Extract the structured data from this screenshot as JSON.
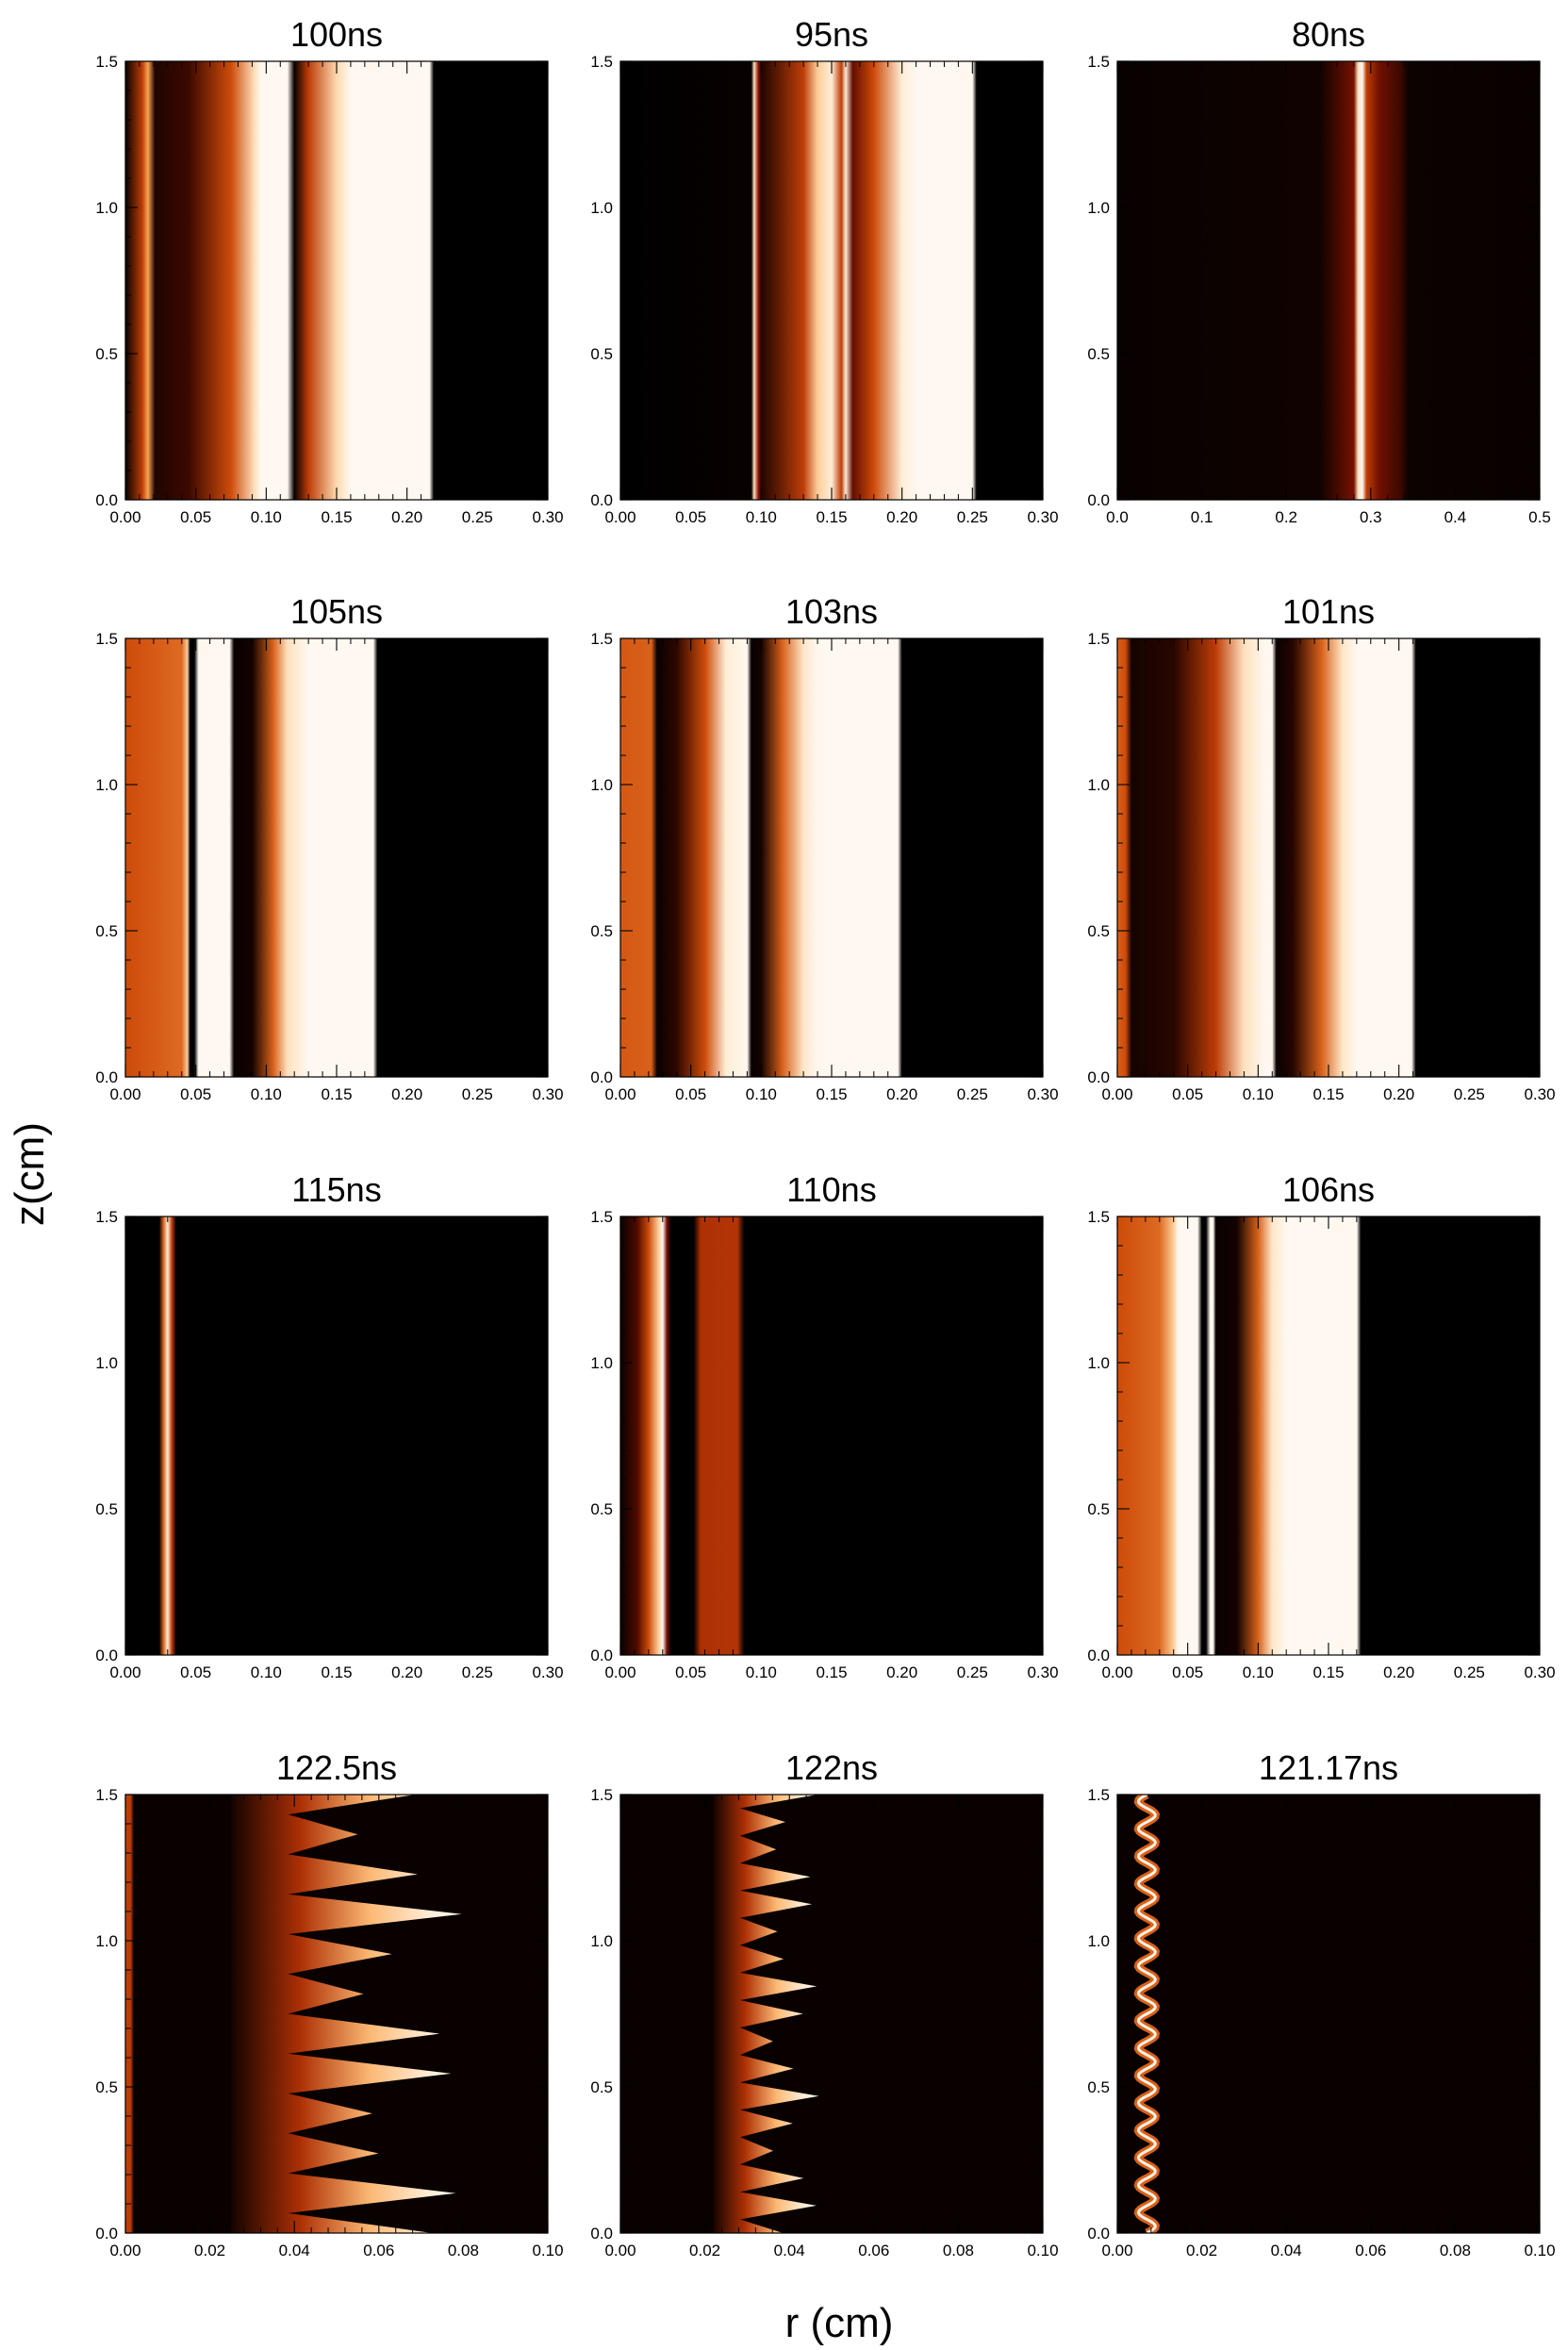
{
  "figure": {
    "ylabel": "z(cm)",
    "xlabel": "r (cm)"
  },
  "chart_data": [
    {
      "type": "heatmap",
      "title": "100ns",
      "xlim": [
        0,
        0.3
      ],
      "ylim": [
        0,
        1.5
      ],
      "xticks": [
        "0.00",
        "0.05",
        "0.10",
        "0.15",
        "0.20",
        "0.25",
        "0.30"
      ],
      "yticks": [
        "0.0",
        "0.5",
        "1.0",
        "1.5"
      ],
      "colormap": "black-red-orange-white",
      "profile": [
        [
          0,
          0.02
        ],
        [
          0.012,
          0.5
        ],
        [
          0.016,
          0.75
        ],
        [
          0.021,
          0.08
        ],
        [
          0.045,
          0.15
        ],
        [
          0.075,
          0.55
        ],
        [
          0.092,
          0.9
        ],
        [
          0.096,
          1
        ],
        [
          0.115,
          1
        ],
        [
          0.12,
          0.02
        ],
        [
          0.13,
          0.5
        ],
        [
          0.15,
          0.88
        ],
        [
          0.16,
          1
        ],
        [
          0.216,
          1
        ],
        [
          0.219,
          0
        ],
        [
          0.3,
          0
        ]
      ]
    },
    {
      "type": "heatmap",
      "title": "95ns",
      "xlim": [
        0,
        0.3
      ],
      "ylim": [
        0,
        1.5
      ],
      "xticks": [
        "0.00",
        "0.05",
        "0.10",
        "0.15",
        "0.20",
        "0.25",
        "0.30"
      ],
      "yticks": [
        "0.0",
        "0.5",
        "1.0",
        "1.5"
      ],
      "colormap": "black-red-orange-white",
      "profile": [
        [
          0,
          0
        ],
        [
          0.093,
          0.02
        ],
        [
          0.095,
          0.9
        ],
        [
          0.098,
          0.35
        ],
        [
          0.1,
          0.08
        ],
        [
          0.13,
          0.5
        ],
        [
          0.14,
          0.85
        ],
        [
          0.15,
          0.95
        ],
        [
          0.157,
          0.5
        ],
        [
          0.16,
          0.95
        ],
        [
          0.165,
          0.25
        ],
        [
          0.18,
          0.55
        ],
        [
          0.2,
          0.95
        ],
        [
          0.21,
          1
        ],
        [
          0.25,
          1
        ],
        [
          0.253,
          0
        ],
        [
          0.3,
          0
        ]
      ]
    },
    {
      "type": "heatmap",
      "title": "80ns",
      "xlim": [
        0,
        0.5
      ],
      "ylim": [
        0,
        1.5
      ],
      "xticks": [
        "0.0",
        "0.1",
        "0.2",
        "0.3",
        "0.4",
        "0.5"
      ],
      "yticks": [
        "0.0",
        "0.5",
        "1.0",
        "1.5"
      ],
      "colormap": "black-red-orange-white",
      "profile": [
        [
          0,
          0.02
        ],
        [
          0.24,
          0.04
        ],
        [
          0.28,
          0.3
        ],
        [
          0.285,
          0.9
        ],
        [
          0.29,
          1
        ],
        [
          0.295,
          0.5
        ],
        [
          0.31,
          0.28
        ],
        [
          0.335,
          0.15
        ],
        [
          0.345,
          0.03
        ],
        [
          0.5,
          0.02
        ]
      ]
    },
    {
      "type": "heatmap",
      "title": "105ns",
      "xlim": [
        0,
        0.3
      ],
      "ylim": [
        0,
        1.5
      ],
      "xticks": [
        "0.00",
        "0.05",
        "0.10",
        "0.15",
        "0.20",
        "0.25",
        "0.30"
      ],
      "yticks": [
        "0.0",
        "0.5",
        "1.0",
        "1.5"
      ],
      "colormap": "black-red-orange-white",
      "profile": [
        [
          0,
          0.55
        ],
        [
          0.04,
          0.62
        ],
        [
          0.044,
          0.85
        ],
        [
          0.046,
          0
        ],
        [
          0.049,
          0
        ],
        [
          0.052,
          1
        ],
        [
          0.074,
          1
        ],
        [
          0.077,
          0.02
        ],
        [
          0.09,
          0.05
        ],
        [
          0.105,
          0.6
        ],
        [
          0.115,
          0.9
        ],
        [
          0.13,
          1
        ],
        [
          0.176,
          1
        ],
        [
          0.179,
          0
        ],
        [
          0.3,
          0
        ]
      ]
    },
    {
      "type": "heatmap",
      "title": "103ns",
      "xlim": [
        0,
        0.3
      ],
      "ylim": [
        0,
        1.5
      ],
      "xticks": [
        "0.00",
        "0.05",
        "0.10",
        "0.15",
        "0.20",
        "0.25",
        "0.30"
      ],
      "yticks": [
        "0.0",
        "0.5",
        "1.0",
        "1.5"
      ],
      "colormap": "black-red-orange-white",
      "profile": [
        [
          0,
          0.58
        ],
        [
          0.022,
          0.6
        ],
        [
          0.026,
          0.02
        ],
        [
          0.04,
          0.12
        ],
        [
          0.06,
          0.55
        ],
        [
          0.075,
          0.95
        ],
        [
          0.09,
          1
        ],
        [
          0.093,
          0.02
        ],
        [
          0.1,
          0.05
        ],
        [
          0.115,
          0.6
        ],
        [
          0.13,
          0.92
        ],
        [
          0.14,
          1
        ],
        [
          0.197,
          1
        ],
        [
          0.2,
          0
        ],
        [
          0.3,
          0
        ]
      ]
    },
    {
      "type": "heatmap",
      "title": "101ns",
      "xlim": [
        0,
        0.3
      ],
      "ylim": [
        0,
        1.5
      ],
      "xticks": [
        "0.00",
        "0.05",
        "0.10",
        "0.15",
        "0.20",
        "0.25",
        "0.30"
      ],
      "yticks": [
        "0.0",
        "0.5",
        "1.0",
        "1.5"
      ],
      "colormap": "black-red-orange-white",
      "profile": [
        [
          0,
          0.6
        ],
        [
          0.006,
          0.55
        ],
        [
          0.01,
          0.05
        ],
        [
          0.04,
          0.1
        ],
        [
          0.07,
          0.5
        ],
        [
          0.09,
          0.9
        ],
        [
          0.105,
          1
        ],
        [
          0.11,
          1
        ],
        [
          0.113,
          0.02
        ],
        [
          0.125,
          0.1
        ],
        [
          0.145,
          0.6
        ],
        [
          0.16,
          0.92
        ],
        [
          0.17,
          1
        ],
        [
          0.209,
          1
        ],
        [
          0.212,
          0
        ],
        [
          0.3,
          0
        ]
      ]
    },
    {
      "type": "heatmap",
      "title": "115ns",
      "xlim": [
        0,
        0.3
      ],
      "ylim": [
        0,
        1.5
      ],
      "xticks": [
        "0.00",
        "0.05",
        "0.10",
        "0.15",
        "0.20",
        "0.25",
        "0.30"
      ],
      "yticks": [
        "0.0",
        "0.5",
        "1.0",
        "1.5"
      ],
      "colormap": "black-red-orange-white",
      "profile": [
        [
          0,
          0
        ],
        [
          0.024,
          0
        ],
        [
          0.027,
          0.6
        ],
        [
          0.03,
          0.95
        ],
        [
          0.033,
          0.5
        ],
        [
          0.036,
          0
        ],
        [
          0.3,
          0
        ]
      ]
    },
    {
      "type": "heatmap",
      "title": "110ns",
      "xlim": [
        0,
        0.3
      ],
      "ylim": [
        0,
        1.5
      ],
      "xticks": [
        "0.00",
        "0.05",
        "0.10",
        "0.15",
        "0.20",
        "0.25",
        "0.30"
      ],
      "yticks": [
        "0.0",
        "0.5",
        "1.0",
        "1.5"
      ],
      "colormap": "black-red-orange-white",
      "profile": [
        [
          0,
          0.02
        ],
        [
          0.012,
          0.2
        ],
        [
          0.02,
          0.55
        ],
        [
          0.027,
          0.85
        ],
        [
          0.03,
          1
        ],
        [
          0.033,
          0.3
        ],
        [
          0.036,
          0
        ],
        [
          0.052,
          0
        ],
        [
          0.057,
          0.45
        ],
        [
          0.083,
          0.47
        ],
        [
          0.088,
          0
        ],
        [
          0.3,
          0
        ]
      ]
    },
    {
      "type": "heatmap",
      "title": "106ns",
      "xlim": [
        0,
        0.3
      ],
      "ylim": [
        0,
        1.5
      ],
      "xticks": [
        "0.00",
        "0.05",
        "0.10",
        "0.15",
        "0.20",
        "0.25",
        "0.30"
      ],
      "yticks": [
        "0.0",
        "0.5",
        "1.0",
        "1.5"
      ],
      "colormap": "black-red-orange-white",
      "profile": [
        [
          0,
          0.55
        ],
        [
          0.03,
          0.62
        ],
        [
          0.04,
          0.85
        ],
        [
          0.043,
          1
        ],
        [
          0.057,
          1
        ],
        [
          0.06,
          0
        ],
        [
          0.063,
          0
        ],
        [
          0.066,
          1
        ],
        [
          0.068,
          1
        ],
        [
          0.07,
          0.02
        ],
        [
          0.085,
          0.05
        ],
        [
          0.1,
          0.6
        ],
        [
          0.11,
          0.92
        ],
        [
          0.12,
          1
        ],
        [
          0.17,
          1
        ],
        [
          0.173,
          0
        ],
        [
          0.3,
          0
        ]
      ]
    },
    {
      "type": "heatmap",
      "title": "122.5ns",
      "xlim": [
        0,
        0.1
      ],
      "ylim": [
        0,
        1.5
      ],
      "xticks": [
        "0.00",
        "0.02",
        "0.04",
        "0.06",
        "0.08",
        "0.10"
      ],
      "yticks": [
        "0.0",
        "0.5",
        "1.0",
        "1.5"
      ],
      "colormap": "black-red-orange-white",
      "profile": [
        [
          0,
          0.5
        ],
        [
          0.0012,
          0.5
        ],
        [
          0.002,
          0.02
        ],
        [
          0.1,
          0.02
        ]
      ],
      "fingers": {
        "root": 0.025,
        "tip_min": 0.055,
        "tip_max": 0.08,
        "count": 11
      }
    },
    {
      "type": "heatmap",
      "title": "122ns",
      "xlim": [
        0,
        0.1
      ],
      "ylim": [
        0,
        1.5
      ],
      "xticks": [
        "0.00",
        "0.02",
        "0.04",
        "0.06",
        "0.08",
        "0.10"
      ],
      "yticks": [
        "0.0",
        "0.5",
        "1.0",
        "1.5"
      ],
      "colormap": "black-red-orange-white",
      "profile": [
        [
          0,
          0.02
        ],
        [
          0.1,
          0.02
        ]
      ],
      "fingers": {
        "root": 0.022,
        "tip_min": 0.036,
        "tip_max": 0.047,
        "count": 16
      }
    },
    {
      "type": "heatmap",
      "title": "121.17ns",
      "xlim": [
        0,
        0.1
      ],
      "ylim": [
        0,
        1.5
      ],
      "xticks": [
        "0.00",
        "0.02",
        "0.04",
        "0.06",
        "0.08",
        "0.10"
      ],
      "yticks": [
        "0.0",
        "0.5",
        "1.0",
        "1.5"
      ],
      "colormap": "black-red-orange-white",
      "profile": [
        [
          0,
          0.02
        ],
        [
          0.1,
          0.02
        ]
      ],
      "wiggle": {
        "center": 0.007,
        "amplitude": 0.002,
        "count": 16
      }
    }
  ]
}
